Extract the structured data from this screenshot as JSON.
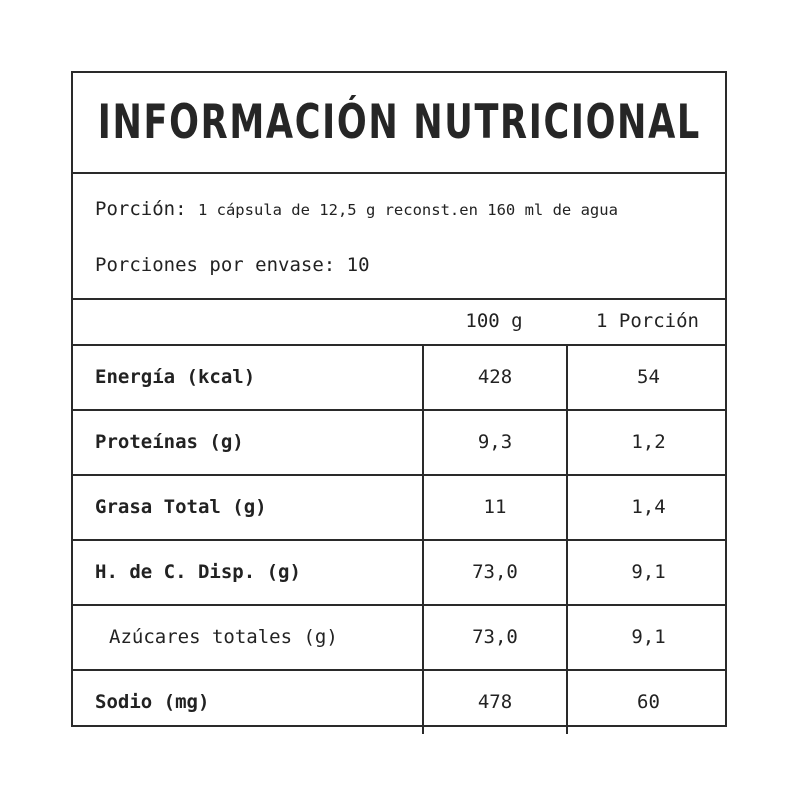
{
  "title": "INFORMACIÓN NUTRICIONAL",
  "serving": {
    "label": "Porción:",
    "value": "1 cápsula de 12,5 g reconst.en 160 ml de agua"
  },
  "servings_per_container": "Porciones por envase: 10",
  "columns": [
    "100 g",
    "1 Porción"
  ],
  "rows": [
    {
      "name": "Energía (kcal)",
      "per100": "428",
      "perServing": "54",
      "sub": false
    },
    {
      "name": "Proteínas (g)",
      "per100": "9,3",
      "perServing": "1,2",
      "sub": false
    },
    {
      "name": "Grasa Total (g)",
      "per100": "11",
      "perServing": "1,4",
      "sub": false
    },
    {
      "name": "H. de C. Disp. (g)",
      "per100": "73,0",
      "perServing": "9,1",
      "sub": false
    },
    {
      "name": "Azúcares totales (g)",
      "per100": "73,0",
      "perServing": "9,1",
      "sub": true
    },
    {
      "name": "Sodio (mg)",
      "per100": "478",
      "perServing": "60",
      "sub": false
    }
  ]
}
